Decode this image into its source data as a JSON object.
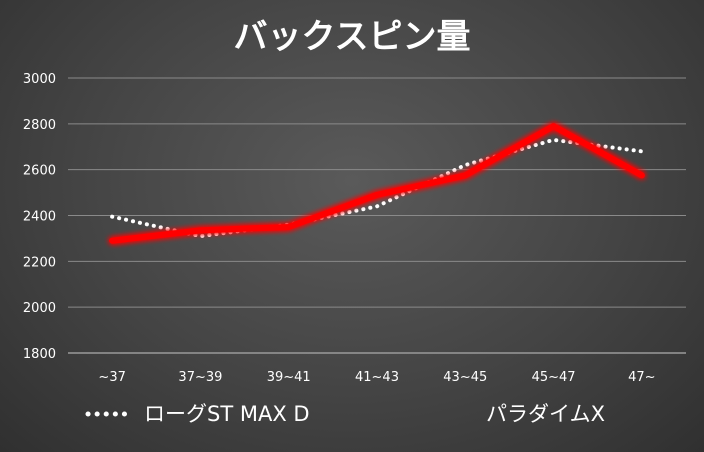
{
  "chart_data": {
    "type": "line",
    "title": "バックスピン量",
    "xlabel": "",
    "ylabel": "",
    "categories": [
      "~37",
      "37~39",
      "39~41",
      "41~43",
      "43~45",
      "45~47",
      "47~"
    ],
    "ylim": [
      1800,
      3000
    ],
    "yticks": [
      1800,
      2000,
      2200,
      2400,
      2600,
      2800,
      3000
    ],
    "grid": true,
    "legend_position": "bottom",
    "series": [
      {
        "name": "ローグST MAX D",
        "values": [
          2395,
          2310,
          2360,
          2440,
          2620,
          2730,
          2680
        ],
        "color": "#ffffff",
        "style": "dotted"
      },
      {
        "name": "パラダイムX",
        "values": [
          2290,
          2335,
          2350,
          2490,
          2575,
          2790,
          2575
        ],
        "color": "#ff0000",
        "style": "solid-glow"
      }
    ]
  }
}
